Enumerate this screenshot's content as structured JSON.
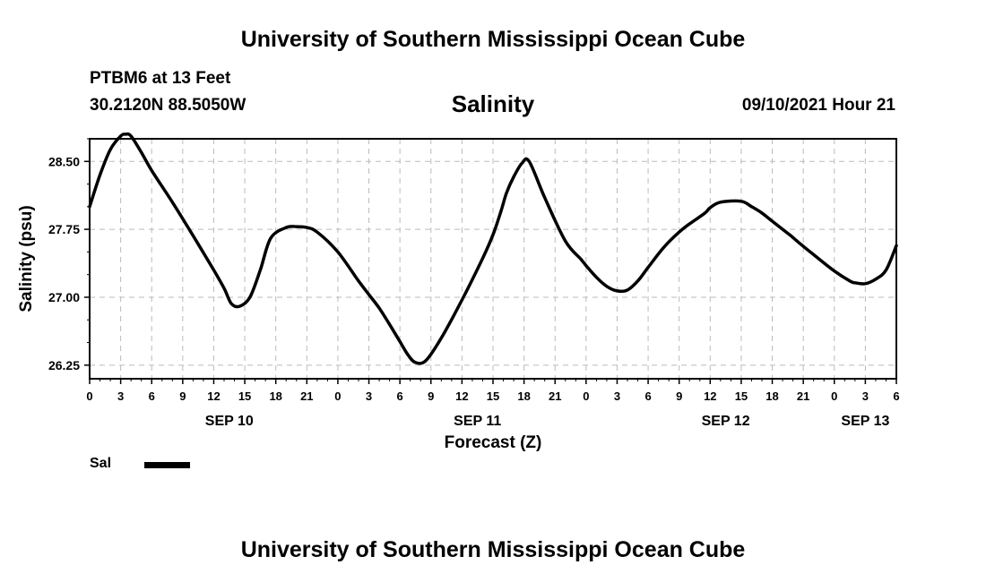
{
  "header": {
    "title": "University of Southern Mississippi Ocean Cube",
    "station": "PTBM6 at 13 Feet",
    "coordinates": "30.2120N  88.5050W",
    "chart_title": "Salinity",
    "valid_time": "09/10/2021 Hour 21"
  },
  "footer": {
    "title": "University of Southern Mississippi Ocean Cube"
  },
  "legend": {
    "label": "Sal",
    "color": "#000000"
  },
  "chart_data": {
    "type": "line",
    "title": "Salinity",
    "xlabel": "Forecast (Z)",
    "ylabel": "Salinity (psu)",
    "x_unit": "hours from SEP 10 00Z",
    "xlim": [
      0,
      78
    ],
    "ylim": [
      26.1,
      28.75
    ],
    "y_ticks": [
      26.25,
      27.0,
      27.75,
      28.5
    ],
    "y_tick_labels": [
      "26.25",
      "27.00",
      "27.75",
      "28.50"
    ],
    "x_ticks": [
      0,
      3,
      6,
      9,
      12,
      15,
      18,
      21,
      24,
      27,
      30,
      33,
      36,
      39,
      42,
      45,
      48,
      51,
      54,
      57,
      60,
      63,
      66,
      69,
      72,
      75,
      78
    ],
    "x_tick_labels": [
      "0",
      "3",
      "6",
      "9",
      "12",
      "15",
      "18",
      "21",
      "0",
      "3",
      "6",
      "9",
      "12",
      "15",
      "18",
      "21",
      "0",
      "3",
      "6",
      "9",
      "12",
      "15",
      "18",
      "21",
      "0",
      "3",
      "6"
    ],
    "date_labels": [
      {
        "x": 13.5,
        "label": "SEP 10"
      },
      {
        "x": 37.5,
        "label": "SEP 11"
      },
      {
        "x": 61.5,
        "label": "SEP 12"
      },
      {
        "x": 75,
        "label": "SEP 13"
      }
    ],
    "grid": true,
    "series": [
      {
        "name": "Sal",
        "color": "#000000",
        "x": [
          0,
          1,
          2,
          3,
          3.5,
          4,
          5,
          6,
          8,
          10,
          12,
          13,
          13.7,
          14.5,
          15.5,
          16.5,
          17.5,
          19,
          20,
          21,
          22,
          24,
          26,
          27,
          28,
          29,
          30,
          30.8,
          31.5,
          32.5,
          34,
          36,
          38,
          39,
          39.8,
          40.3,
          41,
          41.8,
          42.5,
          44,
          46,
          47.5,
          48,
          49,
          50,
          51,
          52,
          53,
          54,
          55.5,
          57,
          58,
          59.5,
          60,
          61,
          63,
          64,
          65,
          66,
          67,
          67.8,
          68.5,
          70,
          72,
          73.5,
          74,
          75,
          76,
          77,
          78
        ],
        "y": [
          28.0,
          28.35,
          28.63,
          28.78,
          28.8,
          28.78,
          28.6,
          28.4,
          28.05,
          27.68,
          27.3,
          27.1,
          26.93,
          26.9,
          27.0,
          27.3,
          27.65,
          27.77,
          27.78,
          27.77,
          27.72,
          27.5,
          27.18,
          27.03,
          26.88,
          26.7,
          26.51,
          26.36,
          26.28,
          26.3,
          26.55,
          26.97,
          27.43,
          27.69,
          27.96,
          28.15,
          28.33,
          28.48,
          28.5,
          28.1,
          27.62,
          27.42,
          27.35,
          27.22,
          27.12,
          27.07,
          27.08,
          27.18,
          27.33,
          27.55,
          27.72,
          27.81,
          27.93,
          27.99,
          28.05,
          28.06,
          28.0,
          27.93,
          27.84,
          27.75,
          27.68,
          27.61,
          27.47,
          27.29,
          27.18,
          27.16,
          27.15,
          27.2,
          27.3,
          27.57
        ]
      }
    ]
  }
}
